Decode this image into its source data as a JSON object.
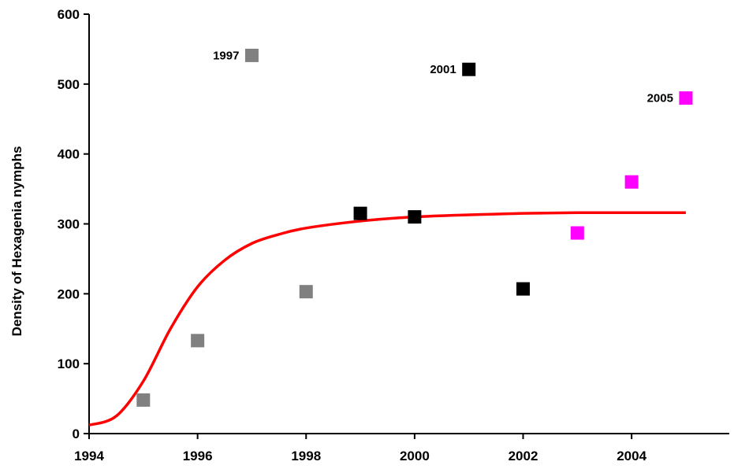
{
  "chart_data": {
    "type": "scatter",
    "title": "",
    "xlabel": "",
    "ylabel": "Density of Hexagenia nymphs",
    "xlim": [
      1994,
      2005.8
    ],
    "ylim": [
      0,
      600
    ],
    "x_ticks": [
      1994,
      1996,
      1998,
      2000,
      2002,
      2004
    ],
    "y_ticks": [
      0,
      100,
      200,
      300,
      400,
      500,
      600
    ],
    "grid": false,
    "legend": "none",
    "colors": {
      "gray": "#808080",
      "black": "#000000",
      "magenta": "#ff00ff",
      "curve": "#ff0000"
    },
    "points": [
      {
        "x": 1995,
        "y": 48,
        "color": "gray"
      },
      {
        "x": 1996,
        "y": 133,
        "color": "gray"
      },
      {
        "x": 1997,
        "y": 541,
        "color": "gray",
        "label": "1997"
      },
      {
        "x": 1998,
        "y": 203,
        "color": "gray"
      },
      {
        "x": 1999,
        "y": 315,
        "color": "black"
      },
      {
        "x": 2000,
        "y": 310,
        "color": "black"
      },
      {
        "x": 2001,
        "y": 521,
        "color": "black",
        "label": "2001"
      },
      {
        "x": 2002,
        "y": 207,
        "color": "black"
      },
      {
        "x": 2003,
        "y": 287,
        "color": "magenta"
      },
      {
        "x": 2004,
        "y": 360,
        "color": "magenta"
      },
      {
        "x": 2005,
        "y": 480,
        "color": "magenta",
        "label": "2005"
      }
    ],
    "fitted_curve": {
      "color": "curve",
      "points": [
        [
          1994,
          12
        ],
        [
          1994.5,
          25
        ],
        [
          1995,
          75
        ],
        [
          1995.5,
          150
        ],
        [
          1996,
          210
        ],
        [
          1996.5,
          248
        ],
        [
          1997,
          272
        ],
        [
          1997.5,
          285
        ],
        [
          1998,
          294
        ],
        [
          1999,
          304
        ],
        [
          2000,
          310
        ],
        [
          2001,
          313
        ],
        [
          2002,
          315
        ],
        [
          2003,
          316
        ],
        [
          2004,
          316
        ],
        [
          2005,
          316
        ]
      ]
    }
  }
}
